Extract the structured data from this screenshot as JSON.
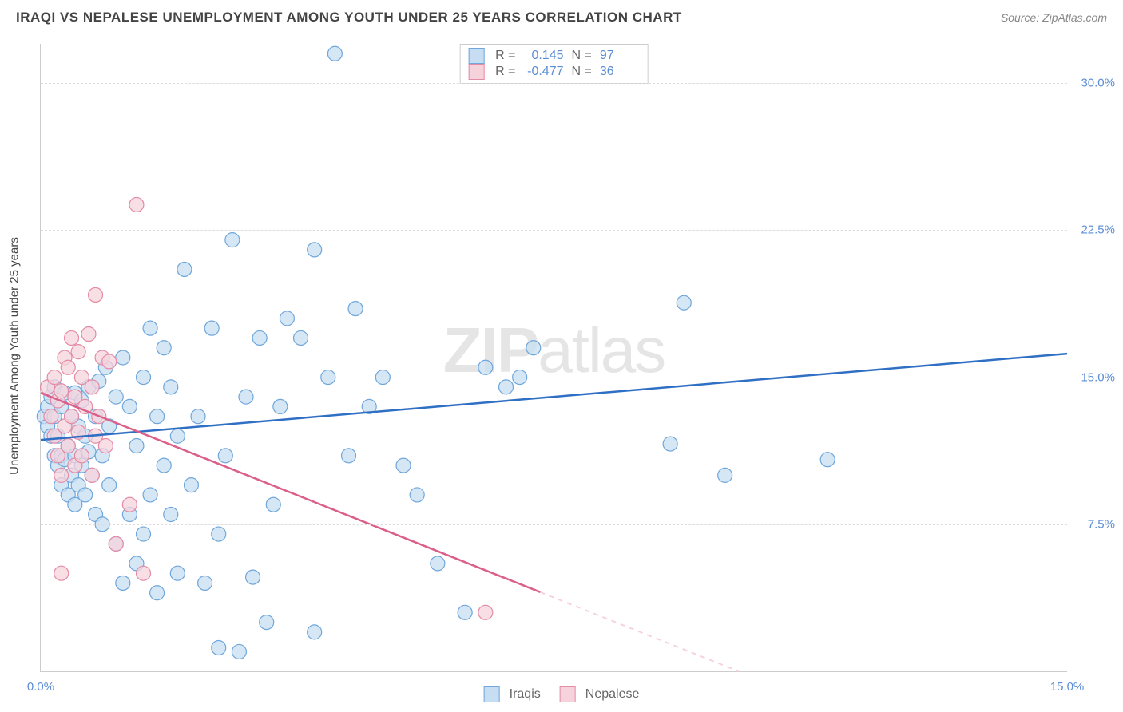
{
  "header": {
    "title": "IRAQI VS NEPALESE UNEMPLOYMENT AMONG YOUTH UNDER 25 YEARS CORRELATION CHART",
    "source": "Source: ZipAtlas.com"
  },
  "watermark": {
    "prefix": "ZIP",
    "suffix": "atlas"
  },
  "chart": {
    "type": "scatter",
    "xlim": [
      0,
      15
    ],
    "ylim": [
      0,
      32
    ],
    "y_ticks": [
      7.5,
      15.0,
      22.5,
      30.0
    ],
    "y_tick_labels": [
      "7.5%",
      "15.0%",
      "22.5%",
      "30.0%"
    ],
    "x_ticks": [
      0,
      15
    ],
    "x_tick_labels": [
      "0.0%",
      "15.0%"
    ],
    "ylabel": "Unemployment Among Youth under 25 years",
    "background_color": "#ffffff",
    "grid_color": "#dddddd",
    "marker_radius": 9,
    "line_width": 2.5,
    "series": [
      {
        "name": "Iraqis",
        "fill_color": "#c7ddf2",
        "stroke_color": "#6fa6db",
        "line_color": "#2f6fc4",
        "R": "0.145",
        "N": "97",
        "trend": {
          "x1": 0,
          "y1": 11.8,
          "x2": 15,
          "y2": 16.2,
          "dash_after": null
        },
        "points": [
          [
            0.05,
            13.0
          ],
          [
            0.1,
            12.5
          ],
          [
            0.1,
            13.5
          ],
          [
            0.15,
            12.0
          ],
          [
            0.15,
            14.0
          ],
          [
            0.2,
            11.0
          ],
          [
            0.2,
            13.0
          ],
          [
            0.2,
            14.5
          ],
          [
            0.25,
            10.5
          ],
          [
            0.25,
            12.0
          ],
          [
            0.3,
            9.5
          ],
          [
            0.3,
            11.0
          ],
          [
            0.3,
            13.5
          ],
          [
            0.35,
            10.8
          ],
          [
            0.35,
            14.2
          ],
          [
            0.4,
            9.0
          ],
          [
            0.4,
            11.5
          ],
          [
            0.45,
            10.0
          ],
          [
            0.45,
            13.0
          ],
          [
            0.5,
            8.5
          ],
          [
            0.5,
            11.0
          ],
          [
            0.5,
            14.2
          ],
          [
            0.55,
            9.5
          ],
          [
            0.55,
            12.5
          ],
          [
            0.6,
            10.5
          ],
          [
            0.6,
            13.8
          ],
          [
            0.65,
            9.0
          ],
          [
            0.65,
            12.0
          ],
          [
            0.7,
            11.2
          ],
          [
            0.7,
            14.5
          ],
          [
            0.75,
            10.0
          ],
          [
            0.8,
            8.0
          ],
          [
            0.8,
            13.0
          ],
          [
            0.85,
            14.8
          ],
          [
            0.9,
            7.5
          ],
          [
            0.9,
            11.0
          ],
          [
            0.95,
            15.5
          ],
          [
            1.0,
            9.5
          ],
          [
            1.0,
            12.5
          ],
          [
            1.1,
            6.5
          ],
          [
            1.1,
            14.0
          ],
          [
            1.2,
            4.5
          ],
          [
            1.2,
            16.0
          ],
          [
            1.3,
            8.0
          ],
          [
            1.3,
            13.5
          ],
          [
            1.4,
            5.5
          ],
          [
            1.4,
            11.5
          ],
          [
            1.5,
            7.0
          ],
          [
            1.5,
            15.0
          ],
          [
            1.6,
            9.0
          ],
          [
            1.6,
            17.5
          ],
          [
            1.7,
            4.0
          ],
          [
            1.7,
            13.0
          ],
          [
            1.8,
            10.5
          ],
          [
            1.8,
            16.5
          ],
          [
            1.9,
            8.0
          ],
          [
            1.9,
            14.5
          ],
          [
            2.0,
            5.0
          ],
          [
            2.0,
            12.0
          ],
          [
            2.1,
            20.5
          ],
          [
            2.2,
            9.5
          ],
          [
            2.3,
            13.0
          ],
          [
            2.4,
            4.5
          ],
          [
            2.5,
            17.5
          ],
          [
            2.6,
            1.2
          ],
          [
            2.6,
            7.0
          ],
          [
            2.7,
            11.0
          ],
          [
            2.8,
            22.0
          ],
          [
            2.9,
            1.0
          ],
          [
            3.0,
            14.0
          ],
          [
            3.1,
            4.8
          ],
          [
            3.2,
            17.0
          ],
          [
            3.3,
            2.5
          ],
          [
            3.4,
            8.5
          ],
          [
            3.5,
            13.5
          ],
          [
            3.6,
            18.0
          ],
          [
            3.8,
            17.0
          ],
          [
            4.0,
            2.0
          ],
          [
            4.0,
            21.5
          ],
          [
            4.2,
            15.0
          ],
          [
            4.3,
            31.5
          ],
          [
            4.5,
            11.0
          ],
          [
            4.6,
            18.5
          ],
          [
            4.8,
            13.5
          ],
          [
            5.0,
            15.0
          ],
          [
            5.3,
            10.5
          ],
          [
            5.5,
            9.0
          ],
          [
            5.8,
            5.5
          ],
          [
            6.2,
            3.0
          ],
          [
            6.5,
            15.5
          ],
          [
            6.8,
            14.5
          ],
          [
            7.0,
            15.0
          ],
          [
            7.2,
            16.5
          ],
          [
            9.2,
            11.6
          ],
          [
            9.4,
            18.8
          ],
          [
            10.0,
            10.0
          ],
          [
            11.5,
            10.8
          ]
        ]
      },
      {
        "name": "Nepalese",
        "fill_color": "#f6d3dc",
        "stroke_color": "#e48ba5",
        "line_color": "#db5f88",
        "R": "-0.477",
        "N": "36",
        "trend": {
          "x1": 0,
          "y1": 14.2,
          "x2": 10.2,
          "y2": 0,
          "dash_after": 7.3
        },
        "points": [
          [
            0.1,
            14.5
          ],
          [
            0.15,
            13.0
          ],
          [
            0.2,
            12.0
          ],
          [
            0.2,
            15.0
          ],
          [
            0.25,
            11.0
          ],
          [
            0.25,
            13.8
          ],
          [
            0.3,
            10.0
          ],
          [
            0.3,
            14.3
          ],
          [
            0.35,
            12.5
          ],
          [
            0.35,
            16.0
          ],
          [
            0.4,
            11.5
          ],
          [
            0.4,
            15.5
          ],
          [
            0.45,
            13.0
          ],
          [
            0.45,
            17.0
          ],
          [
            0.5,
            10.5
          ],
          [
            0.5,
            14.0
          ],
          [
            0.55,
            12.2
          ],
          [
            0.55,
            16.3
          ],
          [
            0.6,
            11.0
          ],
          [
            0.6,
            15.0
          ],
          [
            0.65,
            13.5
          ],
          [
            0.7,
            17.2
          ],
          [
            0.75,
            10.0
          ],
          [
            0.75,
            14.5
          ],
          [
            0.8,
            12.0
          ],
          [
            0.8,
            19.2
          ],
          [
            0.85,
            13.0
          ],
          [
            0.9,
            16.0
          ],
          [
            0.95,
            11.5
          ],
          [
            1.0,
            15.8
          ],
          [
            0.3,
            5.0
          ],
          [
            1.1,
            6.5
          ],
          [
            1.3,
            8.5
          ],
          [
            1.4,
            23.8
          ],
          [
            1.5,
            5.0
          ],
          [
            6.5,
            3.0
          ]
        ]
      }
    ],
    "legend": {
      "R_label": "R =",
      "N_label": "N ="
    }
  }
}
